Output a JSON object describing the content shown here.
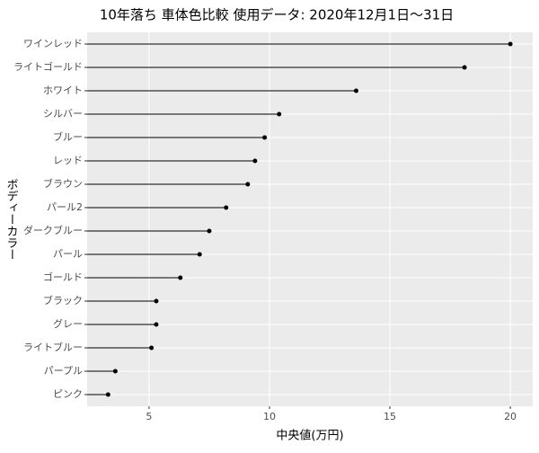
{
  "chart_data": {
    "type": "lollipop",
    "title": "10年落ち 車体色比較 使用データ: 2020年12月1日～31日",
    "x_label": "中央値(万円)",
    "y_label": "ボディーカラー",
    "categories": [
      "ワインレッド",
      "ライトゴールド",
      "ホワイト",
      "シルバー",
      "ブルー",
      "レッド",
      "ブラウン",
      "パール2",
      "ダークブルー",
      "パール",
      "ゴールド",
      "ブラック",
      "グレー",
      "ライトブルー",
      "パープル",
      "ピンク"
    ],
    "values": [
      20.0,
      18.1,
      13.6,
      10.4,
      9.8,
      9.4,
      9.1,
      8.2,
      7.5,
      7.1,
      6.3,
      5.3,
      5.3,
      5.1,
      3.6,
      3.3
    ],
    "color": "#000000",
    "xlim": [
      2.43,
      20.93
    ],
    "xticks": [
      5,
      10,
      15,
      20
    ],
    "grid": true
  }
}
